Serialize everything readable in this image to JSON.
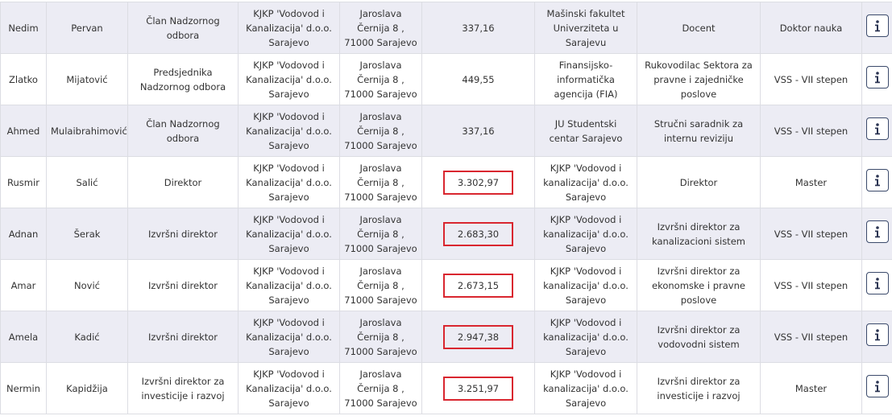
{
  "table": {
    "rows": [
      [
        "Nedim",
        "Pervan",
        "Član Nadzornog odbora",
        "KJKP 'Vodovod i Kanalizacija' d.o.o. Sarajevo",
        "Jaroslava Černija 8 , 71000 Sarajevo",
        "337,16",
        "Mašinski fakultet Univerziteta u Sarajevu",
        "Docent",
        "Doktor nauka"
      ],
      [
        "Zlatko",
        "Mijatović",
        "Predsjednika Nadzornog odbora",
        "KJKP 'Vodovod i Kanalizacija' d.o.o. Sarajevo",
        "Jaroslava Černija 8 , 71000 Sarajevo",
        "449,55",
        "Finansijsko-informatička agencija (FIA)",
        "Rukovodilac Sektora za pravne i zajedničke poslove",
        "VSS - VII stepen"
      ],
      [
        "Ahmed",
        "Mulaibrahimović",
        "Član Nadzornog odbora",
        "KJKP 'Vodovod i Kanalizacija' d.o.o. Sarajevo",
        "Jaroslava Černija 8 , 71000 Sarajevo",
        "337,16",
        "JU Studentski centar Sarajevo",
        "Stručni saradnik za internu reviziju",
        "VSS - VII stepen"
      ],
      [
        "Rusmir",
        "Salić",
        "Direktor",
        "KJKP 'Vodovod i Kanalizacija' d.o.o. Sarajevo",
        "Jaroslava Černija 8 , 71000 Sarajevo",
        "3.302,97",
        "KJKP 'Vodovod i kanalizacija' d.o.o. Sarajevo",
        "Direktor",
        "Master"
      ],
      [
        "Adnan",
        "Šerak",
        "Izvršni direktor",
        "KJKP 'Vodovod i Kanalizacija' d.o.o. Sarajevo",
        "Jaroslava Černija 8 , 71000 Sarajevo",
        "2.683,30",
        "KJKP 'Vodovod i kanalizacija' d.o.o. Sarajevo",
        "Izvršni direktor za kanalizacioni sistem",
        "VSS - VII stepen"
      ],
      [
        "Amar",
        "Nović",
        "Izvršni direktor",
        "KJKP 'Vodovod i Kanalizacija' d.o.o. Sarajevo",
        "Jaroslava Černija 8 , 71000 Sarajevo",
        "2.673,15",
        "KJKP 'Vodovod i kanalizacija' d.o.o. Sarajevo",
        "Izvršni direktor za ekonomske i pravne poslove",
        "VSS - VII stepen"
      ],
      [
        "Amela",
        "Kadić",
        "Izvršni direktor",
        "KJKP 'Vodovod i Kanalizacija' d.o.o. Sarajevo",
        "Jaroslava Černija 8 , 71000 Sarajevo",
        "2.947,38",
        "KJKP 'Vodovod i kanalizacija' d.o.o. Sarajevo",
        "Izvršni direktor za vodovodni sistem",
        "VSS - VII stepen"
      ],
      [
        "Nermin",
        "Kapidžija",
        "Izvršni direktor za investicije i razvoj",
        "KJKP 'Vodovod i Kanalizacija' d.o.o. Sarajevo",
        "Jaroslava Černija 8 , 71000 Sarajevo",
        "3.251,97",
        "KJKP 'Vodovod i kanalizacija' d.o.o. Sarajevo",
        "Izvršni direktor za investicije i razvoj",
        "Master"
      ]
    ]
  }
}
